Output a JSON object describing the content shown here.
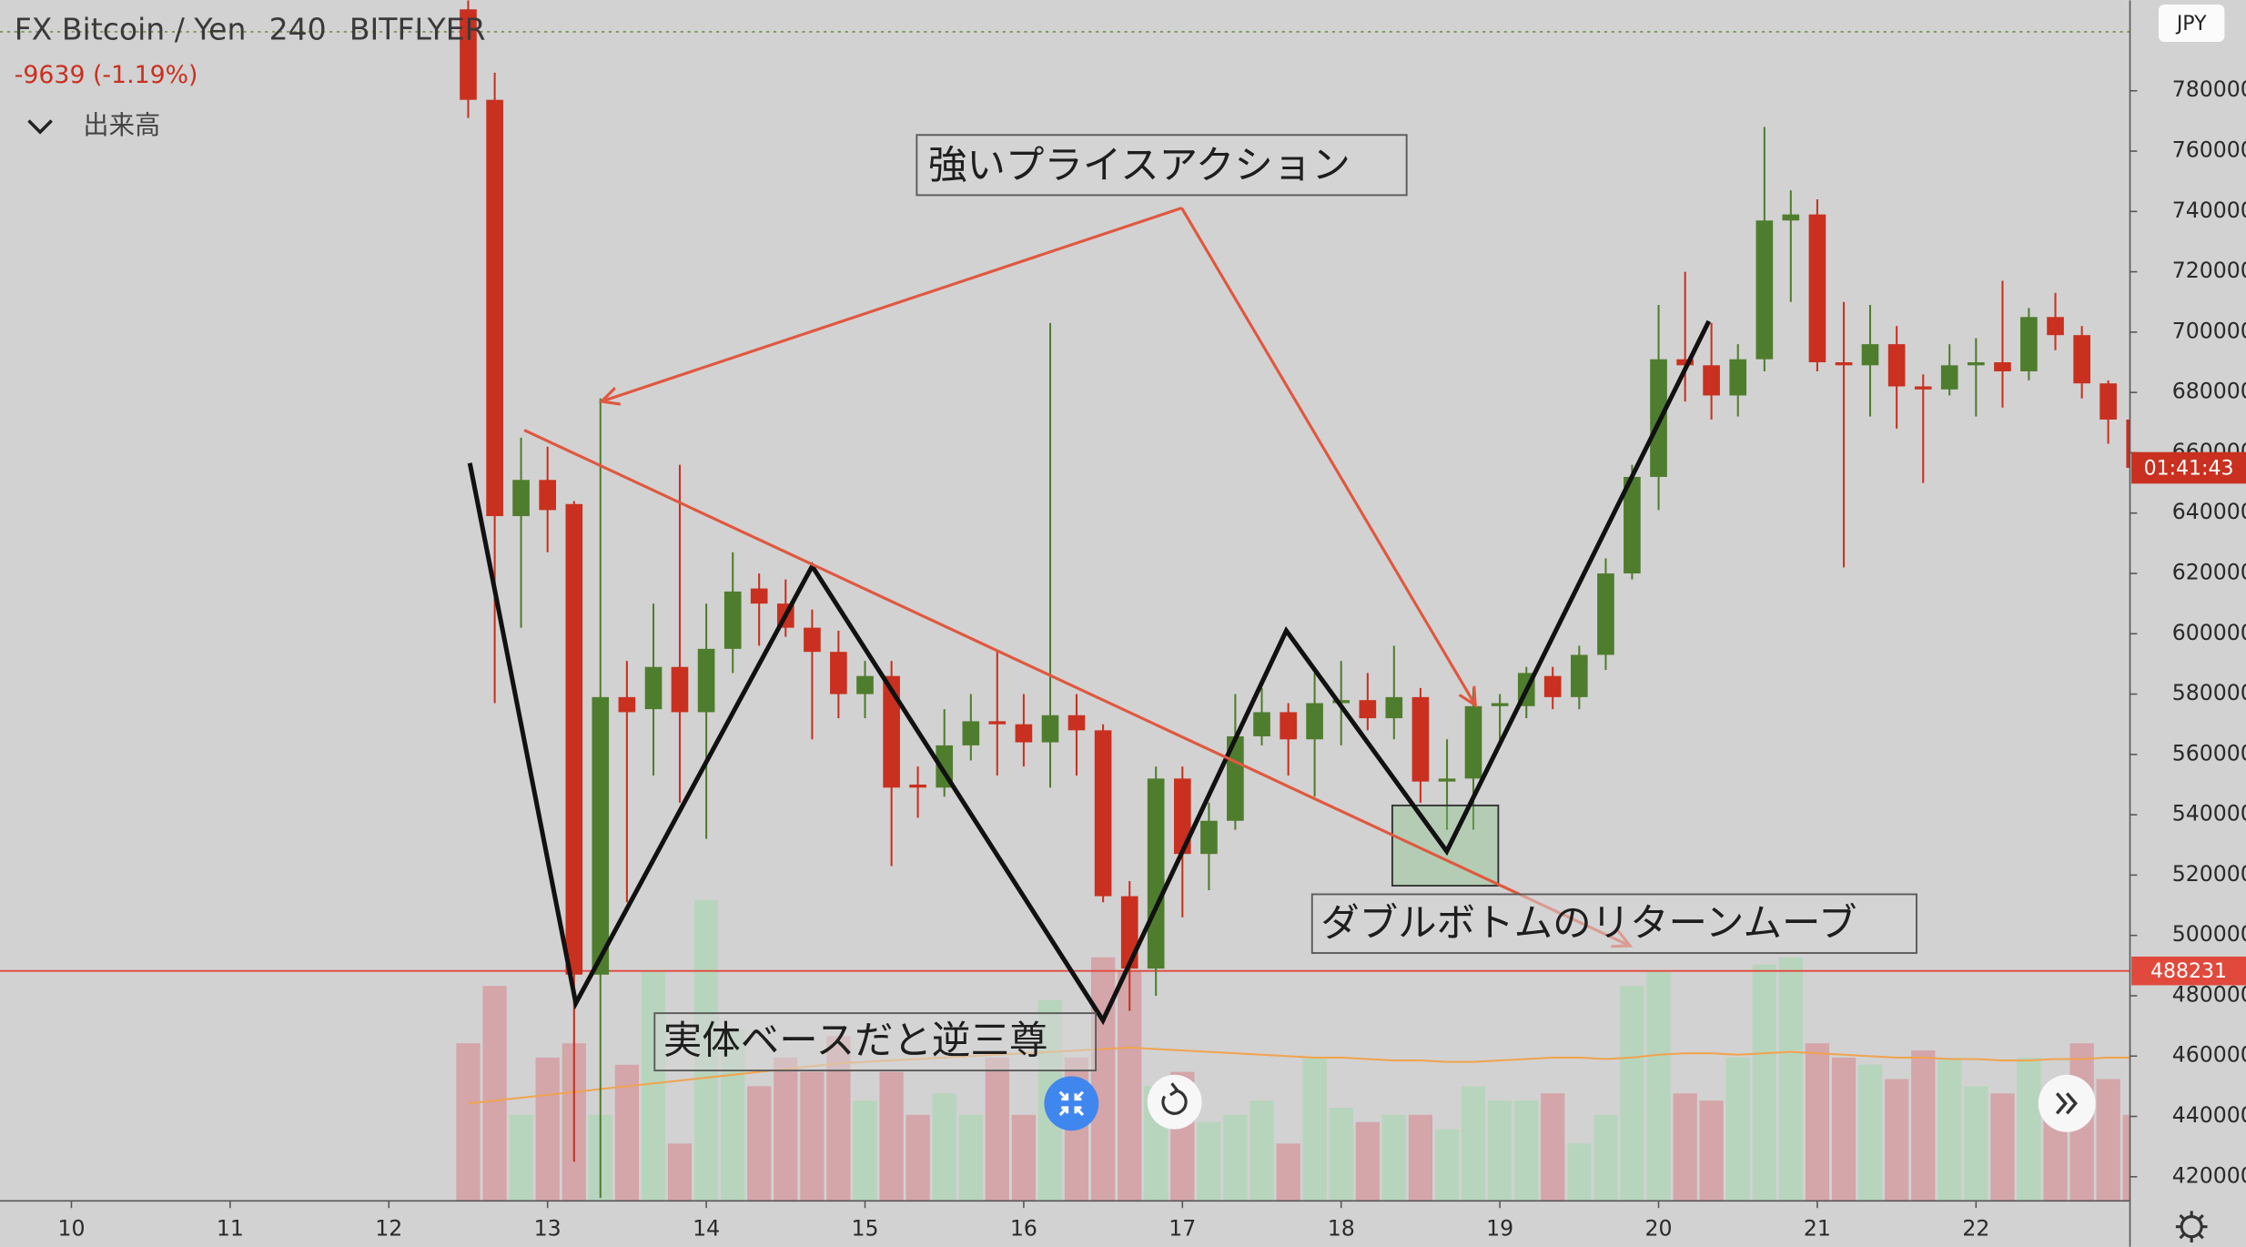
{
  "chart_data": {
    "type": "candlestick",
    "title": "FX Bitcoin / Yen",
    "interval": "240",
    "exchange": "BITFLYER",
    "change": "-9639 (-1.19%)",
    "volume_label": "出来高",
    "currency": "JPY",
    "countdown": "01:41:43",
    "price_line": 488231,
    "annotations": [
      "強いプライスアクション",
      "ダブルボトムのリターンムーブ",
      "実体ベースだと逆三尊"
    ],
    "up_color": "#4f7d2e",
    "down_color": "#c9301f",
    "volume_up_color": "rgba(160,215,170,0.55)",
    "volume_down_color": "rgba(214,128,134,0.55)",
    "volume_ma_color": "#f0a450",
    "price_line_color": "#e0493c",
    "xlim": [
      9.55,
      22.97
    ],
    "xticks": [
      10,
      11,
      12,
      13,
      14,
      15,
      16,
      17,
      18,
      19,
      20,
      21,
      22
    ],
    "ylim": [
      412000,
      810000
    ],
    "yticks": [
      420000,
      440000,
      460000,
      480000,
      500000,
      520000,
      540000,
      560000,
      580000,
      600000,
      620000,
      640000,
      660000,
      680000,
      700000,
      720000,
      740000,
      760000,
      780000
    ],
    "x": [
      12.5,
      12.667,
      12.833,
      13,
      13.167,
      13.333,
      13.5,
      13.667,
      13.833,
      14,
      14.167,
      14.333,
      14.5,
      14.667,
      14.833,
      15,
      15.167,
      15.333,
      15.5,
      15.667,
      15.833,
      16,
      16.167,
      16.333,
      16.5,
      16.667,
      16.833,
      17,
      17.167,
      17.333,
      17.5,
      17.667,
      17.833,
      18,
      18.167,
      18.333,
      18.5,
      18.667,
      18.833,
      19,
      19.167,
      19.333,
      19.5,
      19.667,
      19.833,
      20,
      20.167,
      20.333,
      20.5,
      20.667,
      20.833,
      21,
      21.167,
      21.333,
      21.5,
      21.667,
      21.833,
      22,
      22.167,
      22.333,
      22.5,
      22.667,
      22.833,
      23
    ],
    "open": [
      807000,
      777000,
      639000,
      651000,
      643000,
      487000,
      579000,
      575000,
      589000,
      574000,
      595000,
      615000,
      610000,
      602000,
      594000,
      580000,
      586000,
      550000,
      549000,
      563000,
      571000,
      570000,
      564000,
      573000,
      568000,
      513000,
      489000,
      552000,
      527000,
      538000,
      566000,
      574000,
      565000,
      577000,
      578000,
      572000,
      579000,
      551000,
      552000,
      576000,
      576000,
      586000,
      579000,
      593000,
      620000,
      652000,
      691000,
      689000,
      679000,
      691000,
      737000,
      739000,
      690000,
      689000,
      696000,
      682000,
      681000,
      689000,
      690000,
      687000,
      705000,
      699000,
      683000,
      671000
    ],
    "high": [
      810000,
      786000,
      665000,
      662000,
      644000,
      678000,
      591000,
      610000,
      656000,
      610000,
      627000,
      620000,
      618000,
      608000,
      601000,
      591000,
      591000,
      556000,
      575000,
      580000,
      594000,
      580000,
      703000,
      580000,
      570000,
      518000,
      556000,
      556000,
      544000,
      580000,
      582000,
      577000,
      587000,
      591000,
      587000,
      596000,
      582000,
      565000,
      582000,
      580000,
      589000,
      589000,
      596000,
      625000,
      656000,
      709000,
      720000,
      703000,
      696000,
      768000,
      747000,
      744000,
      710000,
      709000,
      702000,
      686000,
      696000,
      698000,
      717000,
      708000,
      713000,
      702000,
      684000,
      671000
    ],
    "low": [
      771000,
      577000,
      602000,
      627000,
      425000,
      413000,
      511000,
      553000,
      544000,
      532000,
      587000,
      596000,
      599000,
      565000,
      572000,
      572000,
      523000,
      539000,
      546000,
      558000,
      553000,
      556000,
      549000,
      553000,
      511000,
      475000,
      480000,
      506000,
      515000,
      535000,
      563000,
      553000,
      546000,
      563000,
      568000,
      565000,
      544000,
      535000,
      535000,
      563000,
      572000,
      575000,
      575000,
      588000,
      618000,
      641000,
      677000,
      671000,
      672000,
      687000,
      710000,
      687000,
      622000,
      672000,
      668000,
      650000,
      679000,
      672000,
      675000,
      684000,
      694000,
      678000,
      663000,
      655000
    ],
    "close": [
      777000,
      639000,
      651000,
      641000,
      487000,
      579000,
      574000,
      589000,
      574000,
      595000,
      614000,
      610000,
      602000,
      594000,
      580000,
      586000,
      549000,
      549000,
      563000,
      571000,
      570000,
      564000,
      573000,
      568000,
      513000,
      489000,
      552000,
      527000,
      538000,
      566000,
      574000,
      565000,
      577000,
      578000,
      572000,
      579000,
      551000,
      552000,
      576000,
      577000,
      587000,
      579000,
      593000,
      620000,
      652000,
      691000,
      689000,
      679000,
      691000,
      737000,
      739000,
      690000,
      689000,
      696000,
      682000,
      681000,
      689000,
      690000,
      687000,
      705000,
      699000,
      683000,
      671000,
      655000
    ],
    "volume": [
      110,
      150,
      60,
      100,
      110,
      60,
      95,
      160,
      40,
      210,
      120,
      80,
      100,
      90,
      115,
      70,
      90,
      60,
      75,
      60,
      100,
      60,
      140,
      100,
      170,
      160,
      80,
      90,
      55,
      60,
      70,
      40,
      100,
      65,
      55,
      60,
      60,
      50,
      80,
      70,
      70,
      75,
      40,
      60,
      150,
      160,
      75,
      70,
      100,
      165,
      170,
      110,
      100,
      95,
      85,
      105,
      100,
      80,
      75,
      100,
      75,
      110,
      85,
      60
    ],
    "volume_ma": [
      68,
      70,
      72,
      74,
      76,
      78,
      80,
      82,
      84,
      86,
      88,
      90,
      92,
      94,
      96,
      97,
      98,
      99,
      100,
      101,
      102,
      103,
      104,
      105,
      106,
      107,
      106,
      105,
      104,
      103,
      102,
      101,
      100,
      100,
      99,
      98,
      98,
      97,
      97,
      98,
      99,
      100,
      100,
      99,
      100,
      102,
      103,
      103,
      102,
      103,
      104,
      103,
      102,
      101,
      100,
      100,
      99,
      99,
      98,
      98,
      99,
      99,
      100,
      100
    ]
  }
}
